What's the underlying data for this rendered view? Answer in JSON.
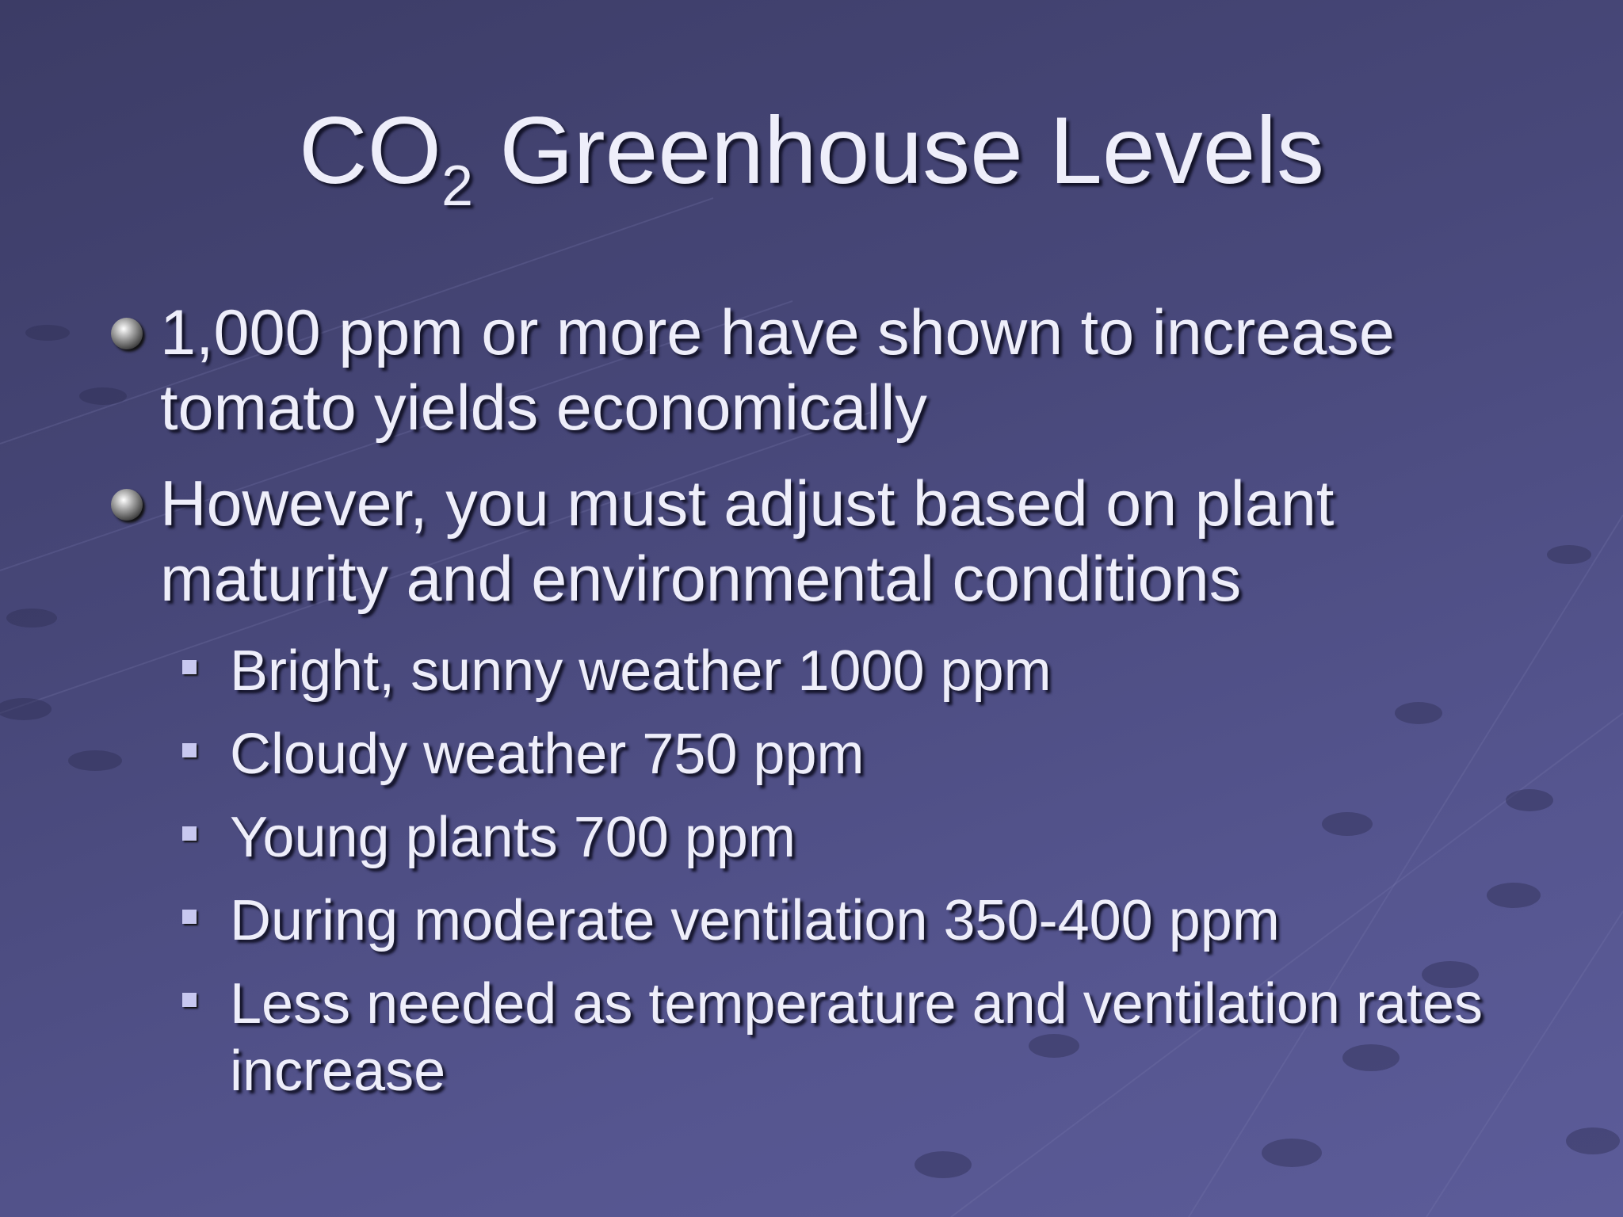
{
  "title": {
    "main": "CO",
    "sub": "2",
    "rest": " Greenhouse Levels"
  },
  "bullets": [
    {
      "text": "1,000 ppm or more have shown to increase tomato yields economically",
      "subs": []
    },
    {
      "text": "However, you must adjust based on plant maturity and environmental conditions",
      "subs": [
        "Bright, sunny weather 1000 ppm",
        "Cloudy weather 750 ppm",
        "Young plants 700 ppm",
        "During moderate ventilation 350-400 ppm",
        "Less needed as temperature and ventilation rates increase"
      ]
    }
  ]
}
